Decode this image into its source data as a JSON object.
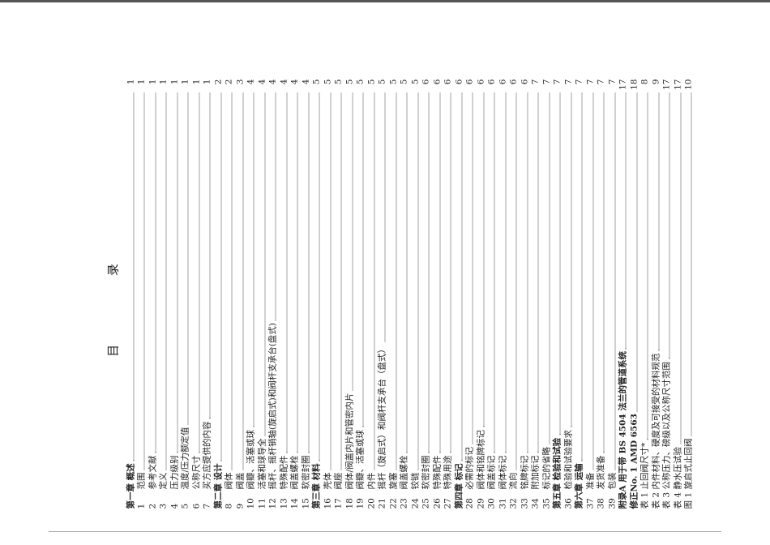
{
  "title": "目 录",
  "entries": [
    {
      "num": "",
      "label": "第一章 概述",
      "page": "1",
      "chapter": true
    },
    {
      "num": "1",
      "label": "范围",
      "page": "1"
    },
    {
      "num": "2",
      "label": "参考文献",
      "page": "1"
    },
    {
      "num": "3",
      "label": "定义",
      "page": "1"
    },
    {
      "num": "4",
      "label": "压力级别",
      "page": "1"
    },
    {
      "num": "5",
      "label": "温度/压力额定值",
      "page": "1"
    },
    {
      "num": "6",
      "label": "公称尺寸",
      "page": "1"
    },
    {
      "num": "7",
      "label": "买方应提供的内容",
      "page": "1"
    },
    {
      "num": "",
      "label": "第二章 设计",
      "page": "2",
      "chapter": true
    },
    {
      "num": "8",
      "label": "阀体",
      "page": "2"
    },
    {
      "num": "9",
      "label": "阀盖",
      "page": "3"
    },
    {
      "num": "10",
      "label": "阀瓣、活塞或球",
      "page": "4"
    },
    {
      "num": "11",
      "label": "活塞和球导全",
      "page": "4"
    },
    {
      "num": "12",
      "label": "摇杆、摇杆销轴(旋启式)和阀杆支承台(盘式)",
      "page": "4"
    },
    {
      "num": "13",
      "label": "特殊配件",
      "page": "4"
    },
    {
      "num": "14",
      "label": "阀盖螺栓",
      "page": "4"
    },
    {
      "num": "15",
      "label": "软密封圈",
      "page": "4"
    },
    {
      "num": "",
      "label": "第三章 材料",
      "page": "5",
      "chapter": true
    },
    {
      "num": "16",
      "label": "壳体",
      "page": "5"
    },
    {
      "num": "17",
      "label": "阀座",
      "page": "5"
    },
    {
      "num": "18",
      "label": "阀体/阀盖内片和管密内片",
      "page": "5"
    },
    {
      "num": "19",
      "label": "阀瓣、活塞或球",
      "page": "5"
    },
    {
      "num": "20",
      "label": "内件",
      "page": "5"
    },
    {
      "num": "21",
      "label": "摇杆（旋启式）和阀杆支承台（盘式）",
      "page": "5"
    },
    {
      "num": "22",
      "label": "旋塞",
      "page": "5"
    },
    {
      "num": "23",
      "label": "阀盖螺栓",
      "page": "5"
    },
    {
      "num": "24",
      "label": "铰链",
      "page": "5"
    },
    {
      "num": "25",
      "label": "软密封圈",
      "page": "6"
    },
    {
      "num": "26",
      "label": "特殊配件",
      "page": "6"
    },
    {
      "num": "27",
      "label": "特殊用途",
      "page": "6"
    },
    {
      "num": "",
      "label": "第四章 标记",
      "page": "6",
      "chapter": true
    },
    {
      "num": "28",
      "label": "必需的标记",
      "page": "6"
    },
    {
      "num": "29",
      "label": "阀体和铭牌标记",
      "page": "6"
    },
    {
      "num": "30",
      "label": "阀盖标记",
      "page": "6"
    },
    {
      "num": "31",
      "label": "阀体标记",
      "page": "6"
    },
    {
      "num": "32",
      "label": "流向",
      "page": "6"
    },
    {
      "num": "33",
      "label": "铭牌标记",
      "page": "6"
    },
    {
      "num": "34",
      "label": "附加标记",
      "page": "7"
    },
    {
      "num": "35",
      "label": "标记的省略",
      "page": "7"
    },
    {
      "num": "",
      "label": "第五章 检验和试验",
      "page": "7",
      "chapter": true
    },
    {
      "num": "36",
      "label": "检验和试验要求",
      "page": "7"
    },
    {
      "num": "",
      "label": "第六章 运输",
      "page": "7",
      "chapter": true
    },
    {
      "num": "37",
      "label": "准备",
      "page": "7"
    },
    {
      "num": "38",
      "label": "发货准备",
      "page": "7"
    },
    {
      "num": "39",
      "label": "包装",
      "page": "7"
    },
    {
      "num": "",
      "label": "附录A 用于带 BS 4504 法兰的管道系统",
      "page": "17",
      "chapter": true
    },
    {
      "num": "",
      "label": "修正No. 1 AMD 6563",
      "page": "18",
      "chapter": true
    },
    {
      "num": "表 1",
      "label": "止回阀尺寸*",
      "page": "8"
    },
    {
      "num": "表 2",
      "label": "内件材料、硬度及可接受的材料规范",
      "page": "9"
    },
    {
      "num": "表 3",
      "label": "公称压力、磅级以及公称尺寸范围",
      "page": "17"
    },
    {
      "num": "表 4",
      "label": "静水压试验",
      "page": "17"
    },
    {
      "num": "图 1",
      "label": "旋启式止回阀",
      "page": "10"
    }
  ]
}
